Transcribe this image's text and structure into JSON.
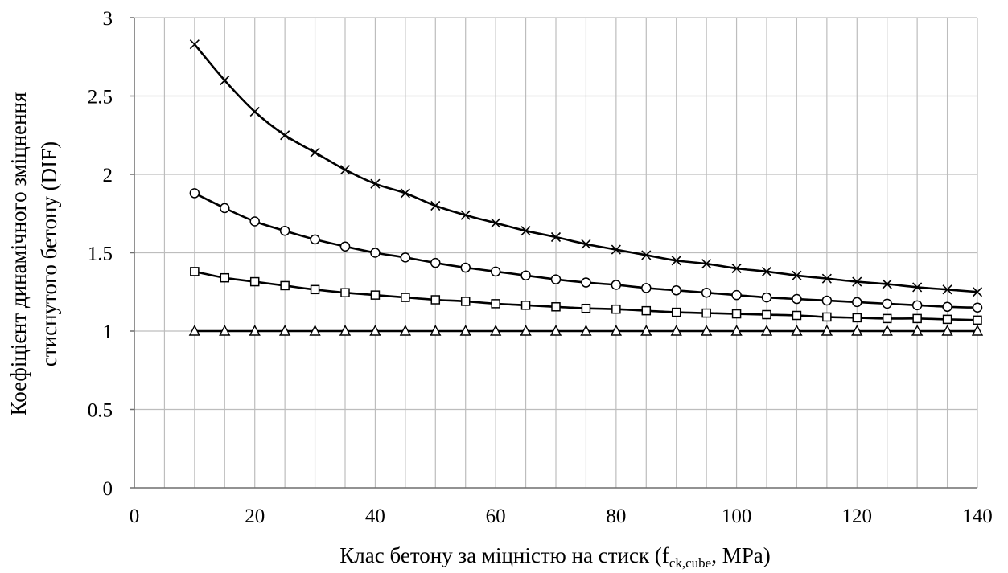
{
  "chart_data": {
    "type": "line",
    "title": "",
    "xlabel": "Клас бетону за міцністю на стиск (f",
    "xlabel_subscript": "ck,cube",
    "xlabel_suffix": ", MPa)",
    "ylabel_line1": "Коефіцієнт динамічного зміцнення",
    "ylabel_line2": "стиснутого бетону (DIF)",
    "xlim": [
      0,
      140
    ],
    "ylim": [
      0,
      3
    ],
    "x_ticks": [
      "0",
      "20",
      "40",
      "60",
      "80",
      "100",
      "120",
      "140"
    ],
    "y_ticks": [
      "0",
      "0.5",
      "1",
      "1.5",
      "2",
      "2.5",
      "3"
    ],
    "grid": true,
    "x_minor_grid_step": 5,
    "legend": "none",
    "x": [
      10,
      15,
      20,
      25,
      30,
      35,
      40,
      45,
      50,
      55,
      60,
      65,
      70,
      75,
      80,
      85,
      90,
      95,
      100,
      105,
      110,
      115,
      120,
      125,
      130,
      135,
      140
    ],
    "series": [
      {
        "marker": "cross",
        "values": [
          2.83,
          2.6,
          2.4,
          2.25,
          2.14,
          2.03,
          1.94,
          1.88,
          1.8,
          1.74,
          1.69,
          1.64,
          1.6,
          1.555,
          1.52,
          1.485,
          1.45,
          1.43,
          1.4,
          1.38,
          1.355,
          1.335,
          1.315,
          1.3,
          1.28,
          1.265,
          1.25
        ]
      },
      {
        "marker": "circle",
        "values": [
          1.88,
          1.785,
          1.7,
          1.64,
          1.585,
          1.54,
          1.5,
          1.47,
          1.435,
          1.405,
          1.38,
          1.355,
          1.33,
          1.31,
          1.295,
          1.275,
          1.26,
          1.245,
          1.23,
          1.215,
          1.205,
          1.195,
          1.185,
          1.175,
          1.165,
          1.155,
          1.15
        ]
      },
      {
        "marker": "square",
        "values": [
          1.38,
          1.34,
          1.315,
          1.29,
          1.265,
          1.245,
          1.23,
          1.215,
          1.2,
          1.19,
          1.175,
          1.165,
          1.155,
          1.145,
          1.14,
          1.13,
          1.12,
          1.115,
          1.11,
          1.105,
          1.1,
          1.09,
          1.085,
          1.08,
          1.08,
          1.075,
          1.07
        ]
      },
      {
        "marker": "triangle",
        "values": [
          1,
          1,
          1,
          1,
          1,
          1,
          1,
          1,
          1,
          1,
          1,
          1,
          1,
          1,
          1,
          1,
          1,
          1,
          1,
          1,
          1,
          1,
          1,
          1,
          1,
          1,
          1
        ]
      }
    ]
  }
}
